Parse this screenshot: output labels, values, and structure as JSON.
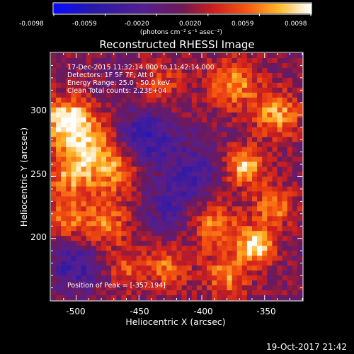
{
  "chart_data": {
    "type": "heatmap",
    "title": "Reconstructed RHESSI Image",
    "xlabel": "Heliocentric X (arcsec)",
    "ylabel": "Heliocentric Y (arcsec)",
    "xlim": [
      -520,
      -320
    ],
    "ylim": [
      150,
      350
    ],
    "xticks": [
      -500,
      -450,
      -400,
      -350
    ],
    "yticks": [
      200,
      250,
      300
    ],
    "annotations": [
      "17-Dec-2015 11:32:14.000 to 11:42:14.000",
      "Detectors: 1F 5F 7F, Att 0",
      "Energy Range: 25.0 - 50.0 keV",
      "Clean    Total counts: 2.23E+04"
    ],
    "peak_label": "Position of Peak = [-357,194]",
    "peak": [
      -357,
      194
    ],
    "colorbar": {
      "ticks": [
        "-0.0098",
        "-0.0059",
        "-0.0020",
        "0.0020",
        "0.0059",
        "0.0098"
      ],
      "label": "(photons cm⁻² s⁻¹ asec⁻²)",
      "range": [
        -0.0098,
        0.0098
      ]
    },
    "blobs": [
      {
        "x": -508,
        "y": 296,
        "amp": 0.0095,
        "sigma": 13
      },
      {
        "x": -490,
        "y": 278,
        "amp": 0.0062,
        "sigma": 15
      },
      {
        "x": -505,
        "y": 252,
        "amp": 0.0066,
        "sigma": 13
      },
      {
        "x": -470,
        "y": 256,
        "amp": 0.006,
        "sigma": 14
      },
      {
        "x": -478,
        "y": 213,
        "amp": 0.0058,
        "sigma": 14
      },
      {
        "x": -510,
        "y": 215,
        "amp": 0.005,
        "sigma": 12
      },
      {
        "x": -375,
        "y": 325,
        "amp": 0.0065,
        "sigma": 14
      },
      {
        "x": -340,
        "y": 300,
        "amp": 0.007,
        "sigma": 13
      },
      {
        "x": -365,
        "y": 258,
        "amp": 0.0082,
        "sigma": 11
      },
      {
        "x": -390,
        "y": 210,
        "amp": 0.006,
        "sigma": 14
      },
      {
        "x": -357,
        "y": 194,
        "amp": 0.0098,
        "sigma": 10
      },
      {
        "x": -343,
        "y": 226,
        "amp": 0.0062,
        "sigma": 11
      },
      {
        "x": -427,
        "y": 177,
        "amp": 0.0052,
        "sigma": 12
      },
      {
        "x": -380,
        "y": 170,
        "amp": 0.006,
        "sigma": 12
      },
      {
        "x": -460,
        "y": 175,
        "amp": 0.004,
        "sigma": 12
      },
      {
        "x": -432,
        "y": 325,
        "amp": 0.0035,
        "sigma": 14
      },
      {
        "x": -445,
        "y": 282,
        "amp": -0.006,
        "sigma": 16
      },
      {
        "x": -407,
        "y": 255,
        "amp": -0.0045,
        "sigma": 14
      },
      {
        "x": -500,
        "y": 178,
        "amp": -0.005,
        "sigma": 15
      },
      {
        "x": -425,
        "y": 225,
        "amp": -0.0035,
        "sigma": 15
      }
    ]
  },
  "timestamp": "19-Oct-2017 21:42",
  "colors": {
    "background": "#000000",
    "text": "#ffffff"
  }
}
